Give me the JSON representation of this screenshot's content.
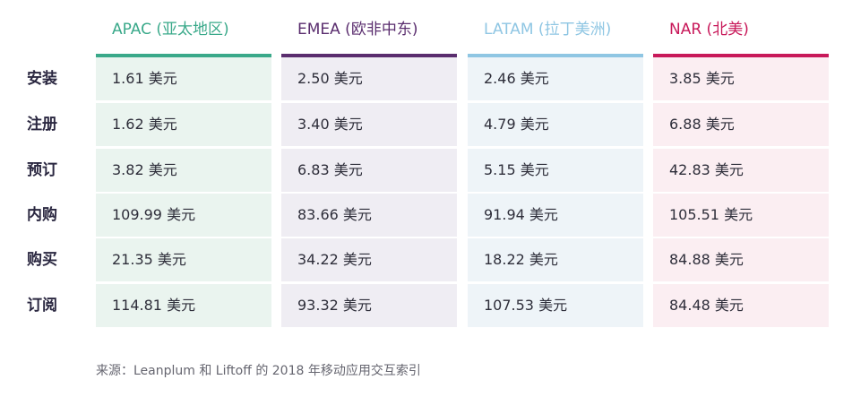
{
  "colors": {
    "apac": "#3aa98a",
    "emea": "#5a2d6e",
    "latam": "#8fc6e3",
    "nar": "#c8195a",
    "apac_bg": "#eaf4ef",
    "emea_bg": "#efedf3",
    "latam_bg": "#eef4f8",
    "nar_bg": "#fbeef2"
  },
  "columns": [
    {
      "title": "APAC (亚太地区)"
    },
    {
      "title": "EMEA (欧非中东)"
    },
    {
      "title": "LATAM (拉丁美洲)"
    },
    {
      "title": "NAR (北美)"
    }
  ],
  "rows": [
    {
      "label": "安装",
      "values": [
        "1.61 美元",
        "2.50 美元",
        "2.46 美元",
        "3.85 美元"
      ]
    },
    {
      "label": "注册",
      "values": [
        "1.62 美元",
        "3.40 美元",
        "4.79 美元",
        "6.88 美元"
      ]
    },
    {
      "label": "预订",
      "values": [
        "3.82 美元",
        "6.83 美元",
        "5.15 美元",
        "42.83 美元"
      ]
    },
    {
      "label": "内购",
      "values": [
        "109.99 美元",
        "83.66 美元",
        "91.94 美元",
        "105.51 美元"
      ]
    },
    {
      "label": "购买",
      "values": [
        "21.35 美元",
        "34.22 美元",
        "18.22 美元",
        "84.88 美元"
      ]
    },
    {
      "label": "订阅",
      "values": [
        "114.81 美元",
        "93.32 美元",
        "107.53 美元",
        "84.48 美元"
      ]
    }
  ],
  "source": "来源：Leanplum 和 Liftoff 的 2018 年移动应用交互索引"
}
